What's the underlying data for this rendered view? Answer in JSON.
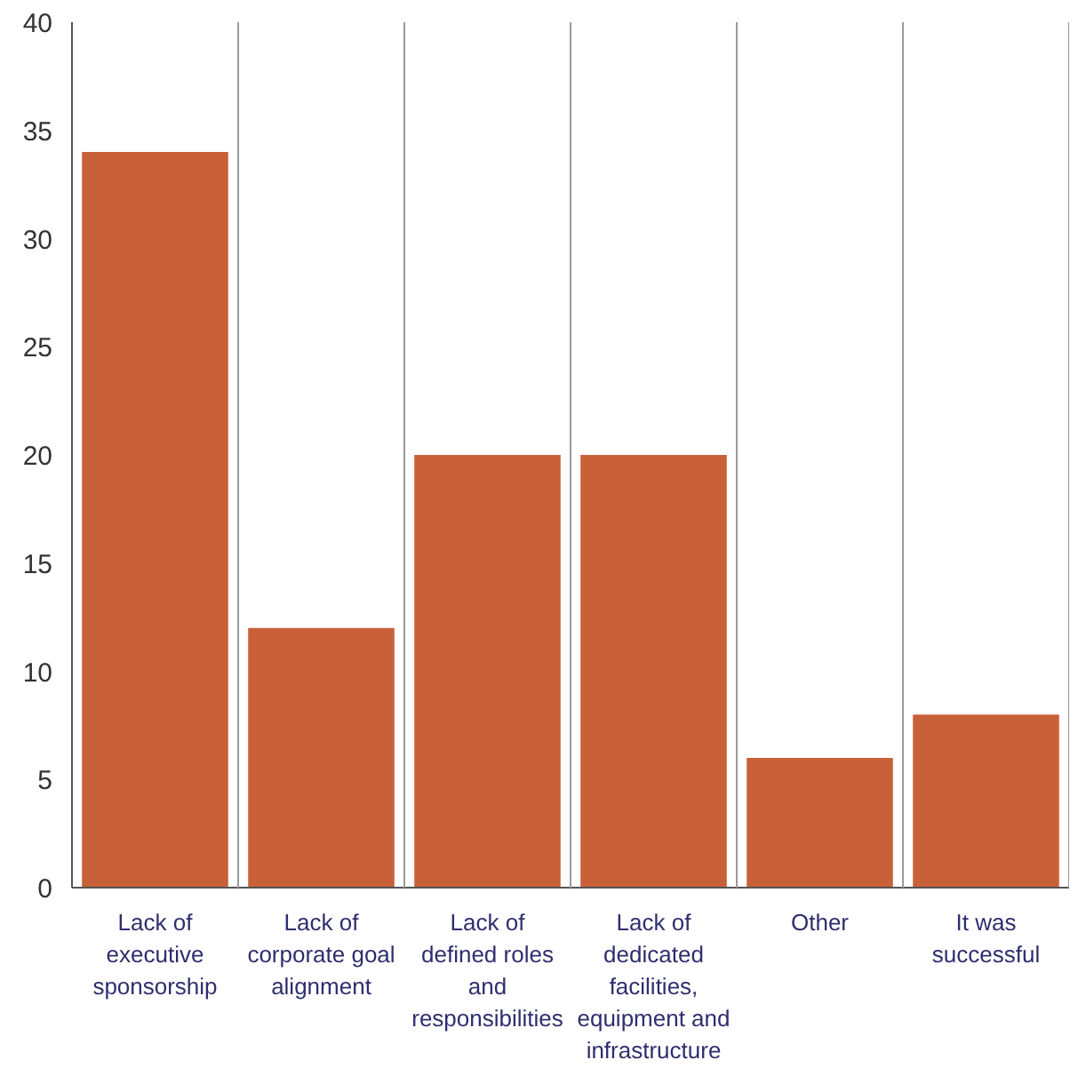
{
  "chart_data": {
    "type": "bar",
    "categories": [
      "Lack of executive sponsorship",
      "Lack of corporate goal alignment",
      "Lack of defined roles and responsibilities",
      "Lack of dedicated facilities, equipment and infrastructure",
      "Other",
      "It was successful"
    ],
    "values": [
      34,
      12,
      20,
      20,
      6,
      8
    ],
    "color": "#c8603a",
    "ylim": [
      0,
      40
    ],
    "yticks": [
      0,
      5,
      10,
      15,
      20,
      25,
      30,
      35,
      40
    ],
    "grid": "x"
  }
}
